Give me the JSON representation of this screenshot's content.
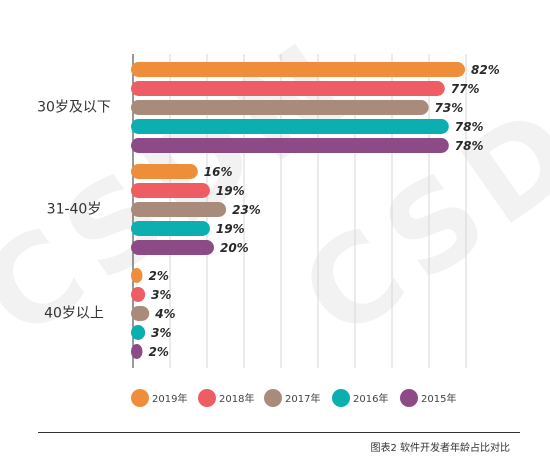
{
  "watermark": "CSDN",
  "caption": "图表2 软件开发者年龄占比对比",
  "chart_data": {
    "type": "bar",
    "orientation": "horizontal",
    "categories": [
      "30岁及以下",
      "31-40岁",
      "40岁以上"
    ],
    "series": [
      {
        "name": "2019年",
        "color": "#EE8D3A",
        "values": [
          82,
          16,
          2
        ],
        "labels": [
          "82%",
          "16%",
          "2%"
        ]
      },
      {
        "name": "2018年",
        "color": "#EE5D63",
        "values": [
          77,
          19,
          3
        ],
        "labels": [
          "77%",
          "19%",
          "3%"
        ]
      },
      {
        "name": "2017年",
        "color": "#A98B7C",
        "values": [
          73,
          23,
          4
        ],
        "labels": [
          "73%",
          "23%",
          "4%"
        ]
      },
      {
        "name": "2016年",
        "color": "#0BAFAF",
        "values": [
          78,
          19,
          3
        ],
        "labels": [
          "78%",
          "19%",
          "3%"
        ]
      },
      {
        "name": "2015年",
        "color": "#8C4A86",
        "values": [
          78,
          20,
          2
        ],
        "labels": [
          "78%",
          "20%",
          "2%"
        ]
      }
    ],
    "xlim": [
      0,
      82
    ],
    "grid": true,
    "legend_position": "bottom"
  }
}
